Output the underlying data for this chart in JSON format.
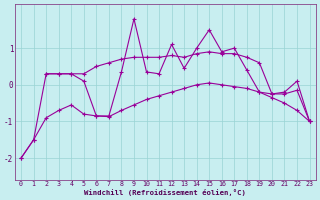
{
  "xlabel": "Windchill (Refroidissement éolien,°C)",
  "bg_color": "#c8eef0",
  "line_color": "#990099",
  "xlim": [
    -0.5,
    23.5
  ],
  "ylim": [
    -2.6,
    2.2
  ],
  "yticks": [
    -2,
    -1,
    0,
    1
  ],
  "xticks": [
    0,
    1,
    2,
    3,
    4,
    5,
    6,
    7,
    8,
    9,
    10,
    11,
    12,
    13,
    14,
    15,
    16,
    17,
    18,
    19,
    20,
    21,
    22,
    23
  ],
  "line1_x": [
    0,
    1,
    2,
    3,
    4,
    5,
    6,
    7,
    8,
    9,
    10,
    11,
    12,
    13,
    14,
    15,
    16,
    17,
    18,
    19,
    20,
    21,
    22,
    23
  ],
  "line1_y": [
    -2.0,
    -1.5,
    0.3,
    0.3,
    0.3,
    0.1,
    -0.85,
    -0.85,
    0.35,
    1.8,
    0.35,
    0.3,
    1.1,
    0.45,
    1.0,
    1.5,
    0.9,
    1.0,
    0.4,
    -0.2,
    -0.25,
    -0.2,
    0.1,
    -1.0
  ],
  "line2_x": [
    2,
    3,
    4,
    5,
    6,
    7,
    8,
    9,
    10,
    11,
    12,
    13,
    14,
    15,
    16,
    17,
    18,
    19,
    20,
    21,
    22,
    23
  ],
  "line2_y": [
    0.3,
    0.3,
    0.3,
    0.3,
    0.5,
    0.6,
    0.7,
    0.75,
    0.75,
    0.75,
    0.8,
    0.75,
    0.85,
    0.9,
    0.85,
    0.85,
    0.75,
    0.6,
    -0.25,
    -0.25,
    -0.15,
    -1.0
  ],
  "line3_x": [
    0,
    1,
    2,
    3,
    4,
    5,
    6,
    7,
    8,
    9,
    10,
    11,
    12,
    13,
    14,
    15,
    16,
    17,
    18,
    19,
    20,
    21,
    22,
    23
  ],
  "line3_y": [
    -2.0,
    -1.5,
    -0.9,
    -0.7,
    -0.55,
    -0.8,
    -0.85,
    -0.87,
    -0.7,
    -0.55,
    -0.4,
    -0.3,
    -0.2,
    -0.1,
    0.0,
    0.05,
    0.0,
    -0.05,
    -0.1,
    -0.2,
    -0.35,
    -0.5,
    -0.7,
    -1.0
  ]
}
